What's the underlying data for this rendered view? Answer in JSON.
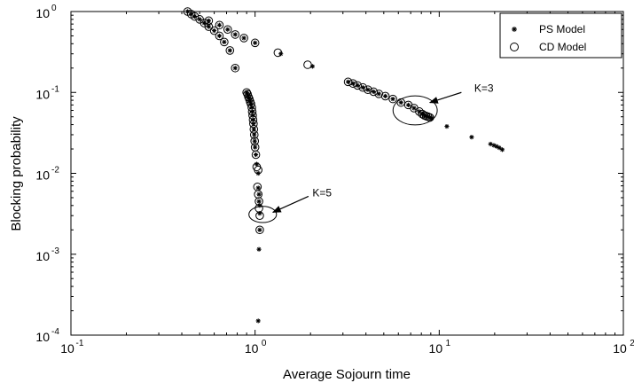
{
  "chart_data": {
    "type": "scatter",
    "title": "",
    "xlabel": "Average Sojourn time",
    "ylabel": "Blocking probability",
    "xscale": "log",
    "yscale": "log",
    "xlim": [
      0.1,
      100
    ],
    "ylim": [
      0.0001,
      1
    ],
    "grid": false,
    "legend_position": "top-right",
    "x_ticks": [
      {
        "value": 0.1,
        "base": "10",
        "exp": "-1"
      },
      {
        "value": 1,
        "base": "10",
        "exp": "0"
      },
      {
        "value": 10,
        "base": "10",
        "exp": "1"
      },
      {
        "value": 100,
        "base": "10",
        "exp": "2"
      }
    ],
    "y_ticks": [
      {
        "value": 0.0001,
        "base": "10",
        "exp": "-4"
      },
      {
        "value": 0.001,
        "base": "10",
        "exp": "-3"
      },
      {
        "value": 0.01,
        "base": "10",
        "exp": "-2"
      },
      {
        "value": 0.1,
        "base": "10",
        "exp": "-1"
      },
      {
        "value": 1,
        "base": "10",
        "exp": "0"
      }
    ],
    "series": [
      {
        "name": "PS Model",
        "marker": "asterisk",
        "points": [
          [
            0.43,
            1.0
          ],
          [
            0.45,
            0.93
          ],
          [
            0.47,
            0.87
          ],
          [
            0.5,
            0.8
          ],
          [
            0.53,
            0.72
          ],
          [
            0.56,
            0.65
          ],
          [
            0.6,
            0.58
          ],
          [
            0.64,
            0.5
          ],
          [
            0.68,
            0.42
          ],
          [
            0.73,
            0.33
          ],
          [
            0.78,
            0.2
          ],
          [
            0.56,
            0.77
          ],
          [
            0.64,
            0.68
          ],
          [
            0.71,
            0.6
          ],
          [
            0.78,
            0.52
          ],
          [
            0.87,
            0.47
          ],
          [
            1.0,
            0.41
          ],
          [
            1.38,
            0.3
          ],
          [
            2.05,
            0.21
          ],
          [
            0.9,
            0.1
          ],
          [
            0.91,
            0.095
          ],
          [
            0.92,
            0.088
          ],
          [
            0.93,
            0.083
          ],
          [
            0.94,
            0.077
          ],
          [
            0.95,
            0.072
          ],
          [
            0.96,
            0.065
          ],
          [
            0.965,
            0.058
          ],
          [
            0.97,
            0.052
          ],
          [
            0.975,
            0.046
          ],
          [
            0.98,
            0.041
          ],
          [
            0.985,
            0.035
          ],
          [
            0.99,
            0.03
          ],
          [
            0.995,
            0.025
          ],
          [
            1.0,
            0.021
          ],
          [
            1.01,
            0.017
          ],
          [
            1.02,
            0.013
          ],
          [
            1.04,
            0.01
          ],
          [
            1.04,
            0.0066
          ],
          [
            1.05,
            0.0055
          ],
          [
            1.05,
            0.0045
          ],
          [
            1.06,
            0.004
          ],
          [
            1.06,
            0.0032
          ],
          [
            1.06,
            0.002
          ],
          [
            1.05,
            0.00115
          ],
          [
            1.04,
            0.00015
          ],
          [
            3.2,
            0.135
          ],
          [
            3.4,
            0.129
          ],
          [
            3.6,
            0.122
          ],
          [
            3.85,
            0.115
          ],
          [
            4.1,
            0.108
          ],
          [
            4.4,
            0.102
          ],
          [
            4.7,
            0.096
          ],
          [
            5.1,
            0.09
          ],
          [
            5.6,
            0.083
          ],
          [
            6.2,
            0.075
          ],
          [
            6.8,
            0.07
          ],
          [
            7.3,
            0.064
          ],
          [
            7.8,
            0.058
          ],
          [
            8.1,
            0.054
          ],
          [
            8.3,
            0.052
          ],
          [
            8.5,
            0.051
          ],
          [
            8.7,
            0.05
          ],
          [
            8.9,
            0.049
          ],
          [
            9.1,
            0.048
          ],
          [
            11,
            0.038
          ],
          [
            15,
            0.028
          ],
          [
            19,
            0.023
          ],
          [
            19.8,
            0.0222
          ],
          [
            20.5,
            0.0215
          ],
          [
            21.2,
            0.0207
          ],
          [
            22,
            0.0196
          ]
        ]
      },
      {
        "name": "CD Model",
        "marker": "circle",
        "points": [
          [
            0.43,
            1.0
          ],
          [
            0.45,
            0.93
          ],
          [
            0.47,
            0.87
          ],
          [
            0.5,
            0.8
          ],
          [
            0.53,
            0.72
          ],
          [
            0.56,
            0.65
          ],
          [
            0.6,
            0.58
          ],
          [
            0.64,
            0.5
          ],
          [
            0.68,
            0.42
          ],
          [
            0.73,
            0.33
          ],
          [
            0.78,
            0.2
          ],
          [
            0.56,
            0.77
          ],
          [
            0.64,
            0.68
          ],
          [
            0.71,
            0.6
          ],
          [
            0.78,
            0.52
          ],
          [
            0.87,
            0.47
          ],
          [
            1.0,
            0.41
          ],
          [
            1.33,
            0.31
          ],
          [
            1.93,
            0.22
          ],
          [
            0.9,
            0.1
          ],
          [
            0.91,
            0.095
          ],
          [
            0.92,
            0.088
          ],
          [
            0.93,
            0.083
          ],
          [
            0.94,
            0.077
          ],
          [
            0.95,
            0.072
          ],
          [
            0.96,
            0.065
          ],
          [
            0.965,
            0.058
          ],
          [
            0.97,
            0.052
          ],
          [
            0.975,
            0.046
          ],
          [
            0.98,
            0.041
          ],
          [
            0.985,
            0.035
          ],
          [
            0.99,
            0.03
          ],
          [
            0.995,
            0.025
          ],
          [
            1.0,
            0.021
          ],
          [
            1.01,
            0.017
          ],
          [
            1.02,
            0.012
          ],
          [
            1.04,
            0.011
          ],
          [
            1.03,
            0.0068
          ],
          [
            1.04,
            0.0055
          ],
          [
            1.05,
            0.0045
          ],
          [
            1.05,
            0.0037
          ],
          [
            1.06,
            0.003
          ],
          [
            1.06,
            0.002
          ],
          [
            3.2,
            0.135
          ],
          [
            3.4,
            0.129
          ],
          [
            3.6,
            0.122
          ],
          [
            3.85,
            0.115
          ],
          [
            4.1,
            0.108
          ],
          [
            4.4,
            0.102
          ],
          [
            4.7,
            0.096
          ],
          [
            5.1,
            0.09
          ],
          [
            5.6,
            0.083
          ],
          [
            6.2,
            0.075
          ],
          [
            6.8,
            0.07
          ],
          [
            7.3,
            0.064
          ],
          [
            7.8,
            0.058
          ],
          [
            8.1,
            0.054
          ],
          [
            8.3,
            0.052
          ],
          [
            8.5,
            0.051
          ],
          [
            8.7,
            0.05
          ],
          [
            8.9,
            0.049
          ]
        ]
      }
    ],
    "annotations": [
      {
        "text": "K=3",
        "text_at": [
          15.5,
          0.102
        ],
        "arrow_from": [
          13.2,
          0.1
        ],
        "arrow_to": [
          8.9,
          0.075
        ],
        "ellipse_center": [
          7.4,
          0.06
        ],
        "ellipse_rx_decades": 0.12,
        "ellipse_ry_decades": 0.18
      },
      {
        "text": "K=5",
        "text_at": [
          2.05,
          0.0052
        ],
        "arrow_from": [
          1.95,
          0.0052
        ],
        "arrow_to": [
          1.25,
          0.0033
        ],
        "ellipse_center": [
          1.1,
          0.0031
        ],
        "ellipse_rx_decades": 0.075,
        "ellipse_ry_decades": 0.1
      }
    ]
  }
}
